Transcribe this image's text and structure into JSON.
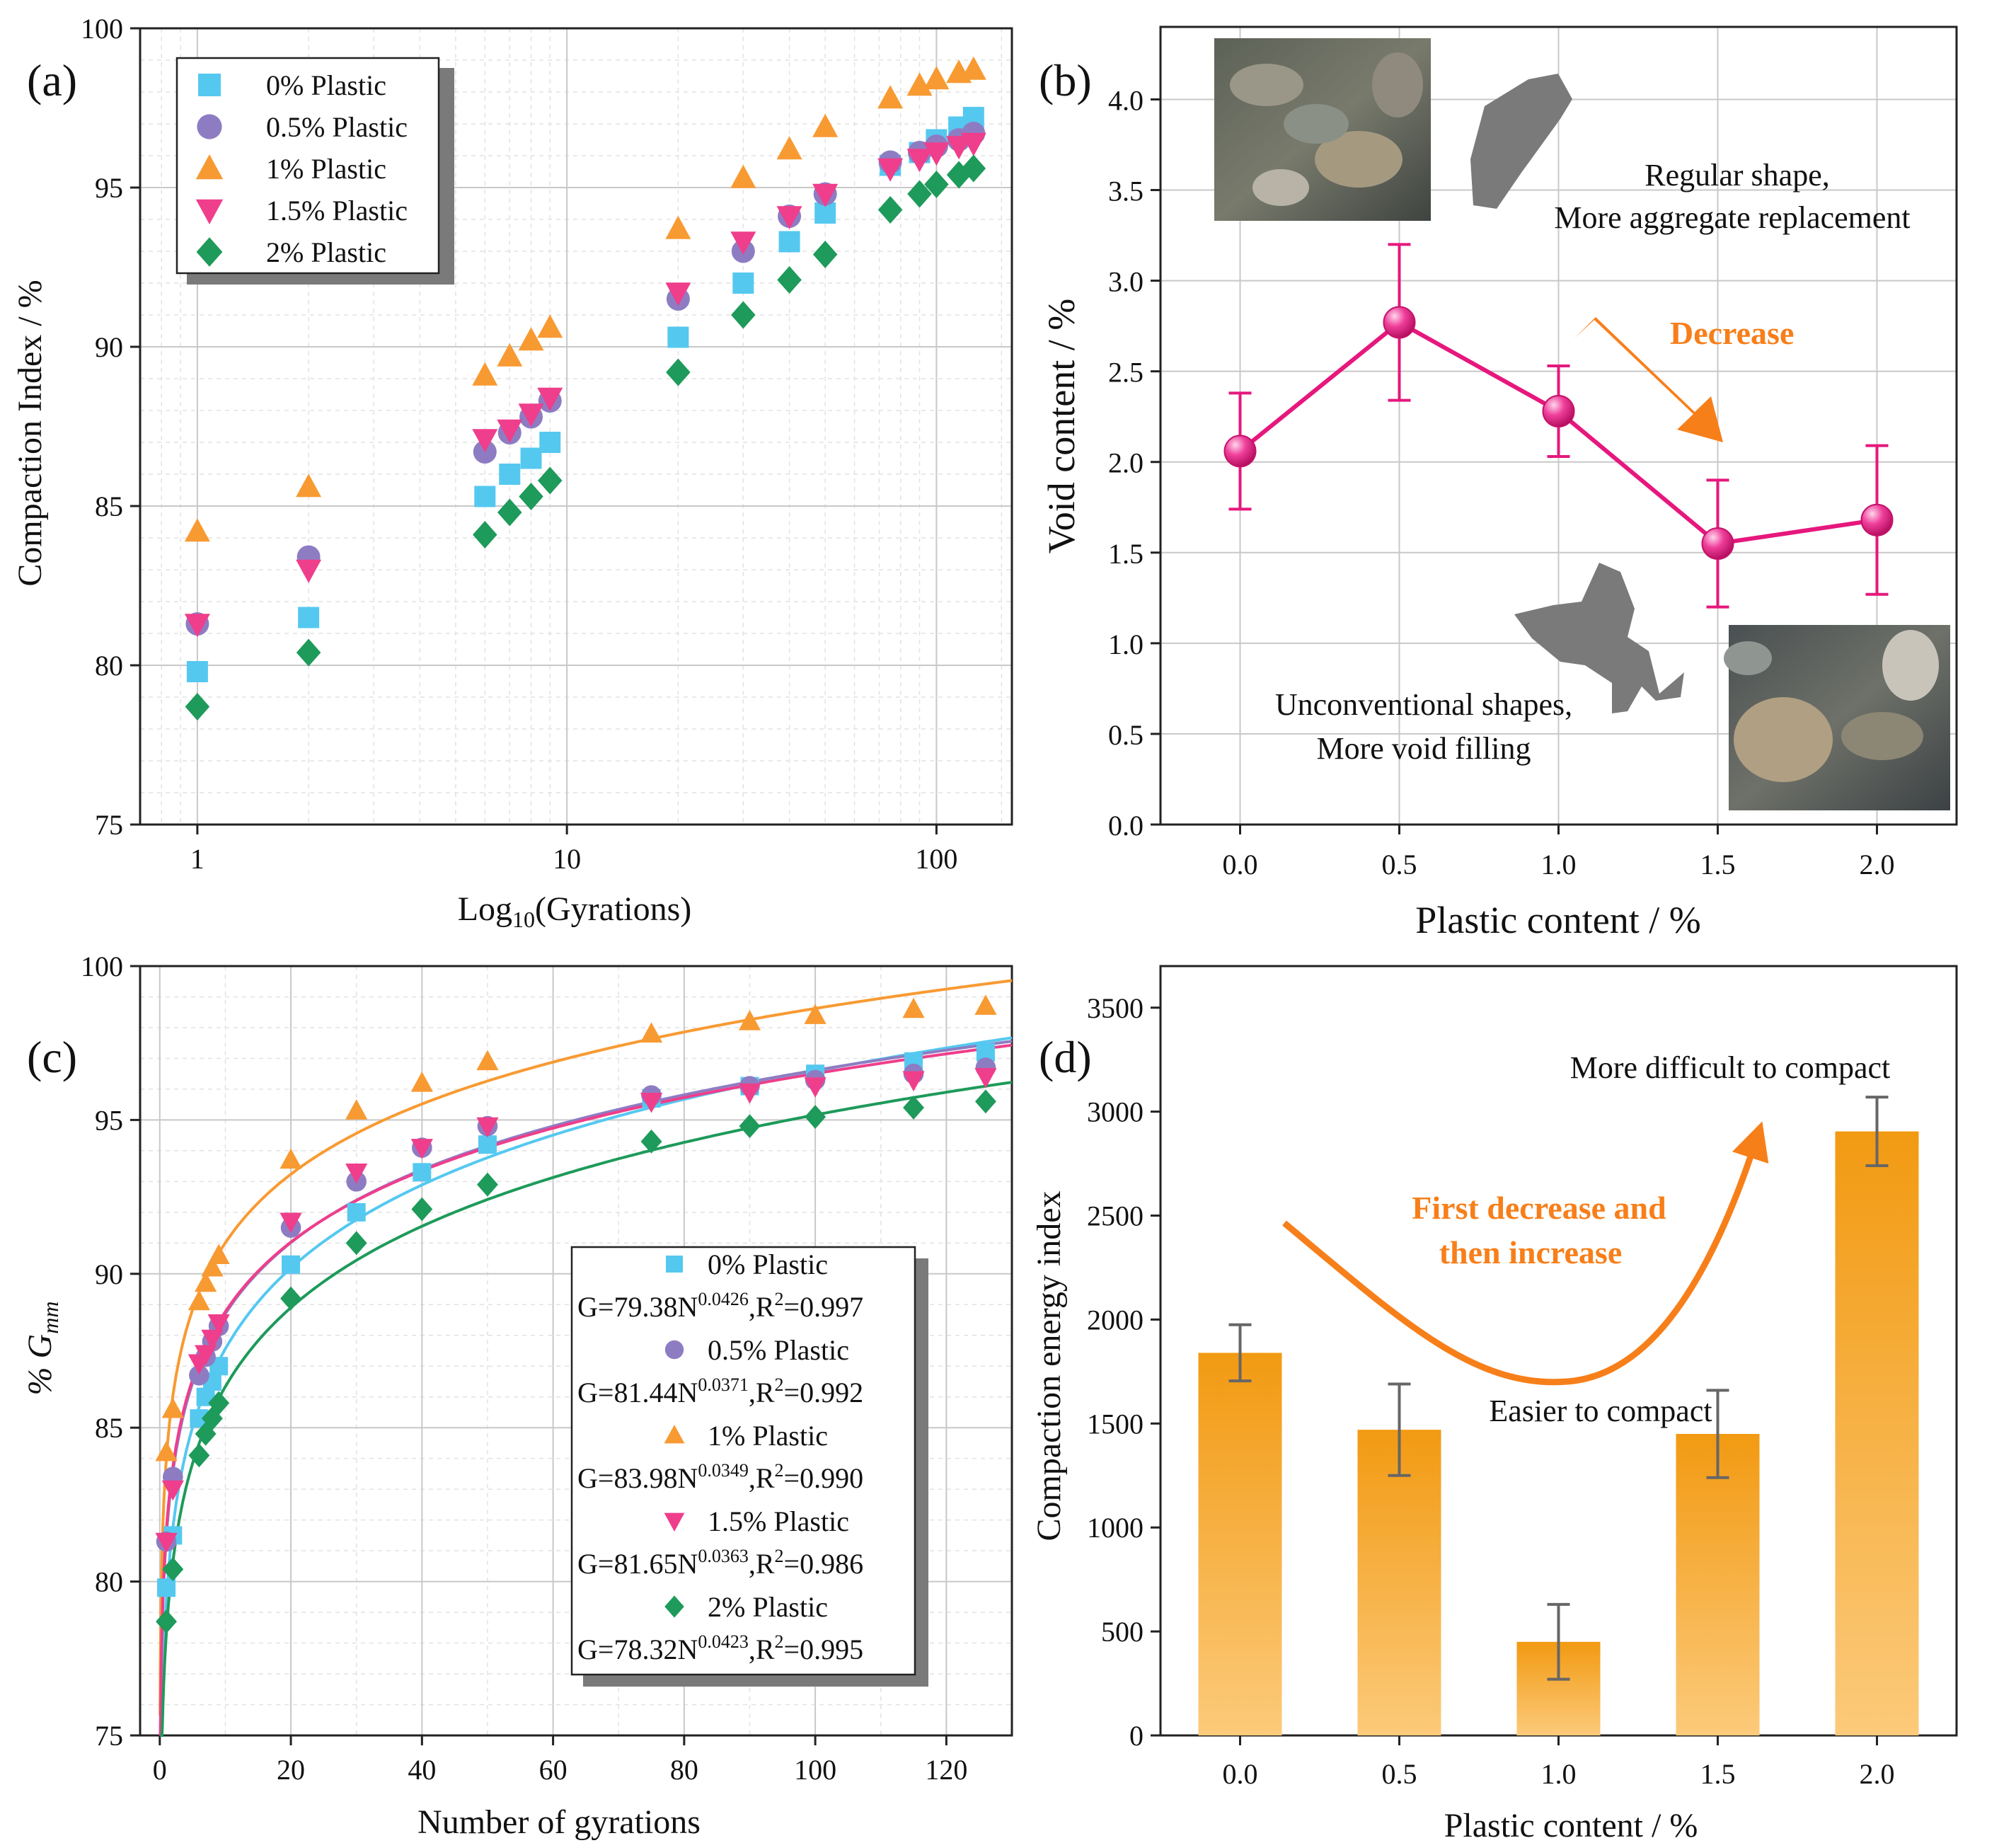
{
  "figure_labels": {
    "a": "(a)",
    "b": "(b)",
    "c": "(c)",
    "d": "(d)"
  },
  "colors": {
    "p0": "#55c8f0",
    "p05": "#8e7cc3",
    "p1": "#f89a32",
    "p15": "#ef3e8b",
    "p2": "#1e9a5a",
    "line_b": "#e6177d",
    "decrease_arrow": "#f77f1a",
    "bar_top": "#f29a12",
    "bar_bottom": "#fcca7a"
  },
  "chart_data": [
    {
      "panel": "a",
      "type": "scatter",
      "xscale": "log",
      "xlabel": "Log10(Gyrations)",
      "xlabel_main": "Log",
      "xlabel_sub": "10",
      "xlabel_rest": "(Gyrations)",
      "ylabel": "Compaction Index / %",
      "xlim": [
        0.7,
        160
      ],
      "ylim": [
        75,
        100
      ],
      "xticks": [
        1,
        10,
        100
      ],
      "xtick_labels": [
        "1",
        "10",
        "100"
      ],
      "yticks": [
        75,
        80,
        85,
        90,
        95,
        100
      ],
      "ytick_labels": [
        "75",
        "80",
        "85",
        "90",
        "95",
        "100"
      ],
      "legend_position": "top-left",
      "x": [
        1,
        2,
        6,
        7,
        8,
        9,
        20,
        30,
        40,
        50,
        75,
        90,
        100,
        115,
        126
      ],
      "series": [
        {
          "name": "0% Plastic",
          "marker": "square",
          "values": [
            79.8,
            81.5,
            85.3,
            86.0,
            86.5,
            87.0,
            90.3,
            92.0,
            93.3,
            94.2,
            95.7,
            96.1,
            96.5,
            96.9,
            97.2
          ]
        },
        {
          "name": "0.5% Plastic",
          "marker": "circle",
          "values": [
            81.3,
            83.4,
            86.7,
            87.3,
            87.8,
            88.3,
            91.5,
            93.0,
            94.1,
            94.8,
            95.8,
            96.1,
            96.3,
            96.5,
            96.7
          ]
        },
        {
          "name": "1% Plastic",
          "marker": "triangle-up",
          "values": [
            84.2,
            85.6,
            89.1,
            89.7,
            90.2,
            90.6,
            93.7,
            95.3,
            96.2,
            96.9,
            97.8,
            98.2,
            98.4,
            98.6,
            98.7
          ]
        },
        {
          "name": "1.5% Plastic",
          "marker": "triangle-down",
          "values": [
            81.3,
            83.0,
            87.1,
            87.4,
            87.9,
            88.4,
            91.7,
            93.3,
            94.1,
            94.8,
            95.6,
            95.9,
            96.1,
            96.3,
            96.4
          ]
        },
        {
          "name": "2% Plastic",
          "marker": "diamond",
          "values": [
            78.7,
            80.4,
            84.1,
            84.8,
            85.3,
            85.8,
            89.2,
            91.0,
            92.1,
            92.9,
            94.3,
            94.8,
            95.1,
            95.4,
            95.6
          ]
        }
      ]
    },
    {
      "panel": "b",
      "type": "line",
      "xlabel": "Plastic content / %",
      "ylabel": "Void content / %",
      "xlim": [
        -0.25,
        2.25
      ],
      "ylim": [
        0,
        4.4
      ],
      "xticks": [
        0,
        0.5,
        1.0,
        1.5,
        2.0
      ],
      "xtick_labels": [
        "0.0",
        "0.5",
        "1.0",
        "1.5",
        "2.0"
      ],
      "yticks": [
        0,
        0.5,
        1.0,
        1.5,
        2.0,
        2.5,
        3.0,
        3.5,
        4.0
      ],
      "ytick_labels": [
        "0.0",
        "0.5",
        "1.0",
        "1.5",
        "2.0",
        "2.5",
        "3.0",
        "3.5",
        "4.0"
      ],
      "x": [
        0,
        0.5,
        1.0,
        1.5,
        2.0
      ],
      "values": [
        2.06,
        2.77,
        2.28,
        1.55,
        1.68
      ],
      "error": [
        0.32,
        0.43,
        0.25,
        0.35,
        0.41
      ],
      "annotations": {
        "top_line1": "Regular shape,",
        "top_line2": "More aggregate replacement",
        "arrow": "Decrease",
        "bottom_line1": "Unconventional shapes,",
        "bottom_line2": "More void filling"
      }
    },
    {
      "panel": "c",
      "type": "scatter",
      "xlabel": "Number of gyrations",
      "ylabel": "% Gmm",
      "ylabel_main": "% G",
      "ylabel_sub": "mm",
      "xlim": [
        -3,
        130
      ],
      "ylim": [
        75,
        100
      ],
      "xticks": [
        0,
        20,
        40,
        60,
        80,
        100,
        120
      ],
      "xtick_labels": [
        "0",
        "20",
        "40",
        "60",
        "80",
        "100",
        "120"
      ],
      "yticks": [
        75,
        80,
        85,
        90,
        95,
        100
      ],
      "ytick_labels": [
        "75",
        "80",
        "85",
        "90",
        "95",
        "100"
      ],
      "legend_position": "bottom-right",
      "x": [
        1,
        2,
        6,
        7,
        8,
        9,
        20,
        30,
        40,
        50,
        75,
        90,
        100,
        115,
        126
      ],
      "series": [
        {
          "name": "0% Plastic",
          "marker": "square",
          "fit_a": 79.38,
          "fit_b": 0.0426,
          "equation": "G=79.38N",
          "exponent": "0.0426",
          "r2": ",R",
          "r2_sup": "2",
          "r2_val": "=0.997",
          "values": [
            79.8,
            81.5,
            85.3,
            86.0,
            86.5,
            87.0,
            90.3,
            92.0,
            93.3,
            94.2,
            95.7,
            96.1,
            96.5,
            96.9,
            97.2
          ]
        },
        {
          "name": "0.5% Plastic",
          "marker": "circle",
          "fit_a": 81.44,
          "fit_b": 0.0371,
          "equation": "G=81.44N",
          "exponent": "0.0371",
          "r2": ",R",
          "r2_sup": "2",
          "r2_val": "=0.992",
          "values": [
            81.3,
            83.4,
            86.7,
            87.3,
            87.8,
            88.3,
            91.5,
            93.0,
            94.1,
            94.8,
            95.8,
            96.1,
            96.3,
            96.5,
            96.7
          ]
        },
        {
          "name": "1% Plastic",
          "marker": "triangle-up",
          "fit_a": 83.98,
          "fit_b": 0.0349,
          "equation": "G=83.98N",
          "exponent": "0.0349",
          "r2": ",R",
          "r2_sup": "2",
          "r2_val": "=0.990",
          "values": [
            84.2,
            85.6,
            89.1,
            89.7,
            90.2,
            90.6,
            93.7,
            95.3,
            96.2,
            96.9,
            97.8,
            98.2,
            98.4,
            98.6,
            98.7
          ]
        },
        {
          "name": "1.5% Plastic",
          "marker": "triangle-down",
          "fit_a": 81.65,
          "fit_b": 0.0363,
          "equation": "G=81.65N",
          "exponent": "0.0363",
          "r2": ",R",
          "r2_sup": "2",
          "r2_val": "=0.986",
          "values": [
            81.3,
            83.0,
            87.1,
            87.4,
            87.9,
            88.4,
            91.7,
            93.3,
            94.1,
            94.8,
            95.6,
            95.9,
            96.1,
            96.3,
            96.4
          ]
        },
        {
          "name": "2% Plastic",
          "marker": "diamond",
          "fit_a": 78.32,
          "fit_b": 0.0423,
          "equation": "G=78.32N",
          "exponent": "0.0423",
          "r2": ",R",
          "r2_sup": "2",
          "r2_val": "=0.995",
          "values": [
            78.7,
            80.4,
            84.1,
            84.8,
            85.3,
            85.8,
            89.2,
            91.0,
            92.1,
            92.9,
            94.3,
            94.8,
            95.1,
            95.4,
            95.6
          ]
        }
      ]
    },
    {
      "panel": "d",
      "type": "bar",
      "xlabel": "Plastic content / %",
      "ylabel": "Compaction energy index",
      "categories": [
        "0.0",
        "0.5",
        "1.0",
        "1.5",
        "2.0"
      ],
      "values": [
        1840,
        1470,
        450,
        1450,
        2905
      ],
      "error": [
        135,
        220,
        180,
        210,
        165
      ],
      "ylim": [
        0,
        3700
      ],
      "yticks": [
        0,
        500,
        1000,
        1500,
        2000,
        2500,
        3000,
        3500
      ],
      "ytick_labels": [
        "0",
        "500",
        "1000",
        "1500",
        "2000",
        "2500",
        "3000",
        "3500"
      ],
      "annotations": {
        "top": "More difficult to compact",
        "curve_line1": "First decrease and",
        "curve_line2": "then increase",
        "bottom": "Easier to compact"
      }
    }
  ]
}
